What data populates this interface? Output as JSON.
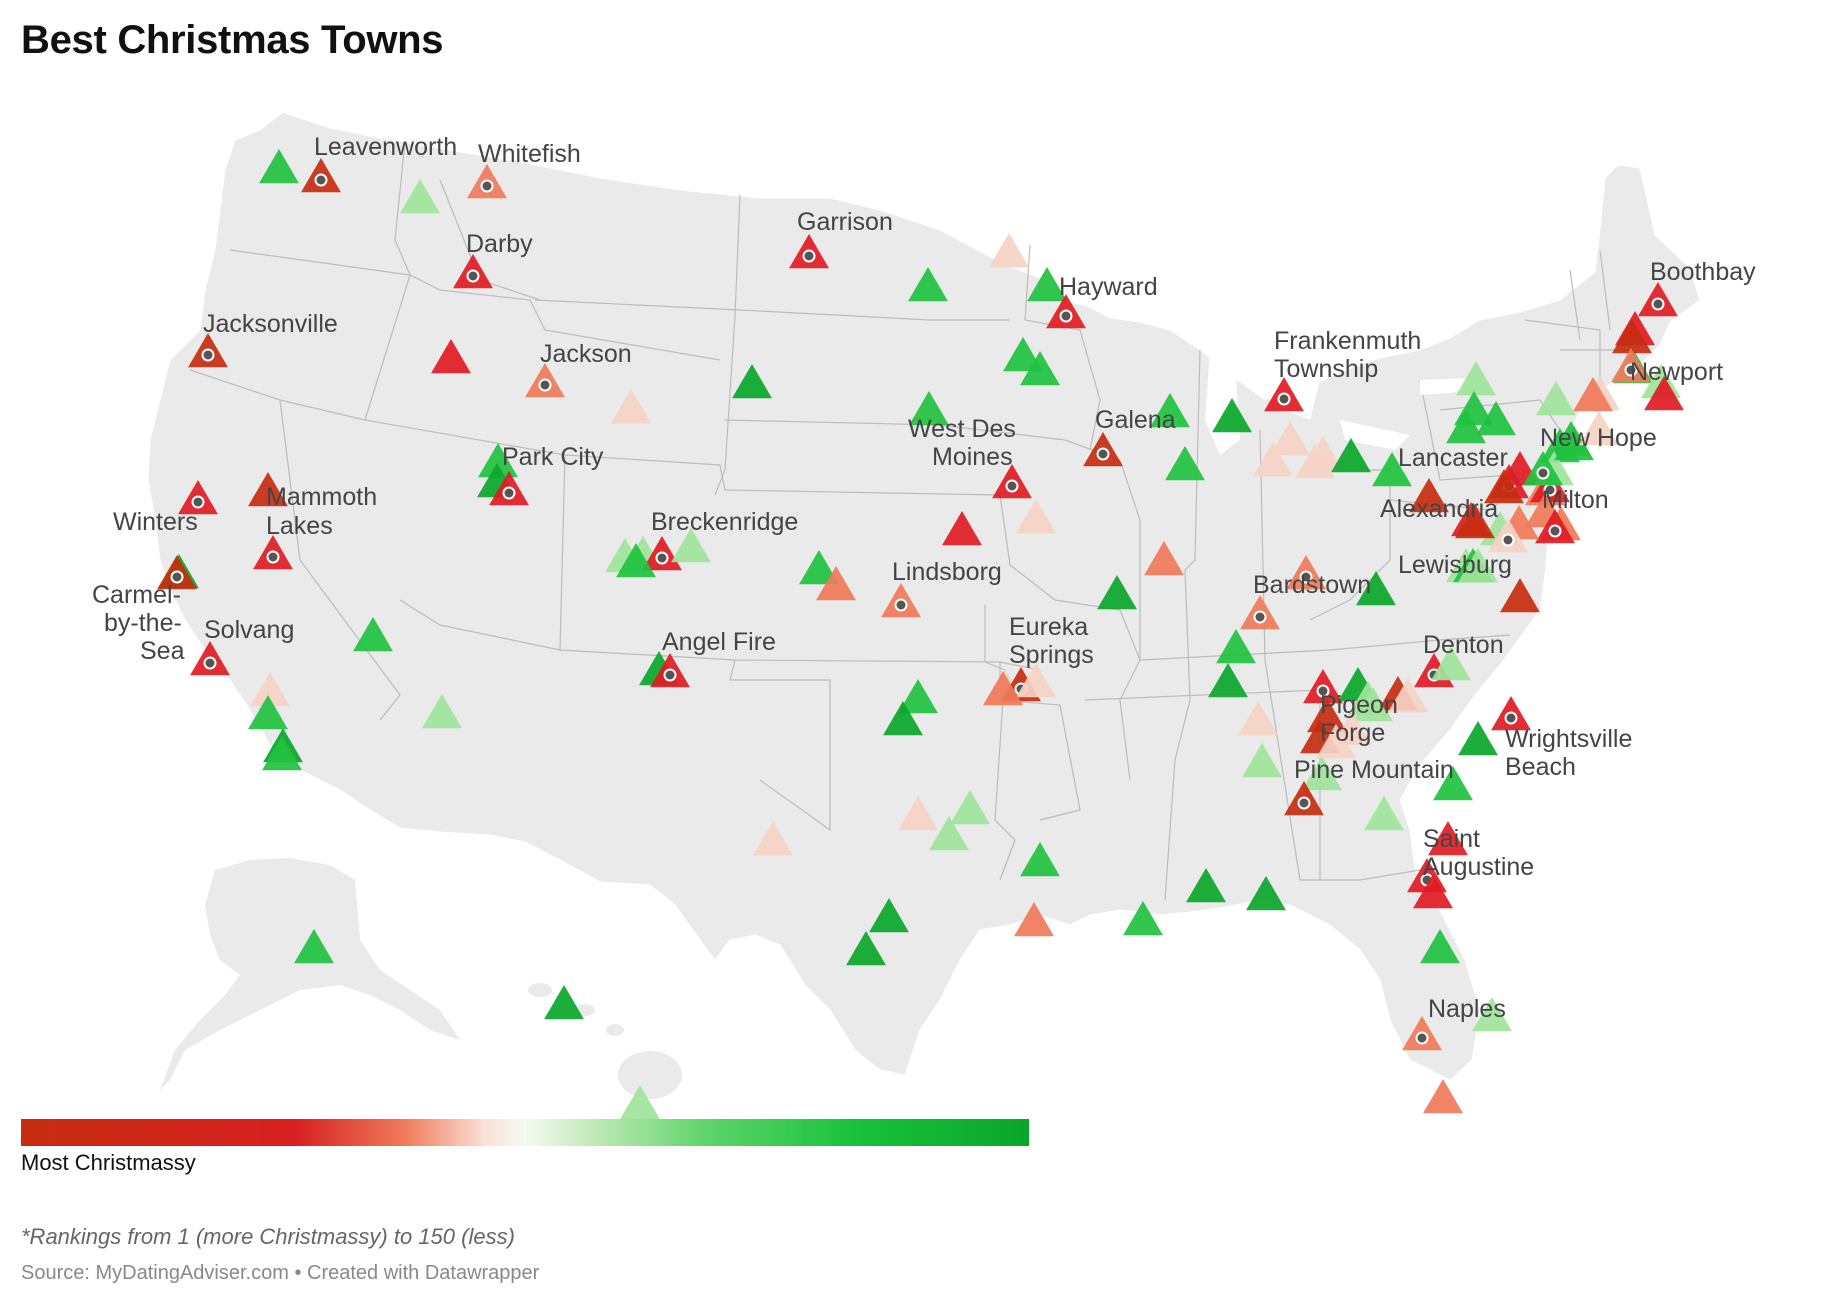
{
  "title": "Best Christmas Towns",
  "legend": {
    "label": "Most Christmassy"
  },
  "footnote": "*Rankings from 1 (more Christmassy) to 150 (less)",
  "source": "Source: MyDatingAdviser.com • Created with Datawrapper",
  "colors": {
    "most": "#c62d0f",
    "red": "#e01b24",
    "salmon": "#f07a5a",
    "pale": "#f6d3c6",
    "lightgreen": "#9ee49a",
    "green": "#1fc23f",
    "darkgreen": "#0aa62a",
    "land": "#eaeaea"
  },
  "labels": {
    "leavenworth": [
      "Leavenworth"
    ],
    "whitefish": [
      "Whitefish"
    ],
    "darby": [
      "Darby"
    ],
    "jacksonville": [
      "Jacksonville"
    ],
    "jackson": [
      "Jackson"
    ],
    "garrison": [
      "Garrison"
    ],
    "hayward": [
      "Hayward"
    ],
    "park_city": [
      "Park City"
    ],
    "mammoth_lakes": [
      "Mammoth",
      "Lakes"
    ],
    "winters": [
      "Winters"
    ],
    "carmel": [
      "Carmel-",
      "by-the-",
      "Sea"
    ],
    "solvang": [
      "Solvang"
    ],
    "breckenridge": [
      "Breckenridge"
    ],
    "angel_fire": [
      "Angel Fire"
    ],
    "lindsborg": [
      "Lindsborg"
    ],
    "west_des_moines": [
      "West Des",
      "Moines"
    ],
    "galena": [
      "Galena"
    ],
    "eureka_springs": [
      "Eureka",
      "Springs"
    ],
    "frankenmuth": [
      "Frankenmuth",
      "Township"
    ],
    "bardstown": [
      "Bardstown"
    ],
    "lancaster": [
      "Lancaster"
    ],
    "alexandria": [
      "Alexandria"
    ],
    "lewisburg": [
      "Lewisburg"
    ],
    "denton": [
      "Denton"
    ],
    "pigeon_forge": [
      "Pigeon",
      "Forge"
    ],
    "pine_mountain": [
      "Pine Mountain"
    ],
    "wrightsville": [
      "Wrightsville",
      "Beach"
    ],
    "saint_augustine": [
      "Saint",
      "Augustine"
    ],
    "naples": [
      "Naples"
    ],
    "boothbay": [
      "Boothbay"
    ],
    "newport": [
      "Newport"
    ],
    "new_hope": [
      "New Hope"
    ],
    "milton": [
      "Milton"
    ]
  }
}
